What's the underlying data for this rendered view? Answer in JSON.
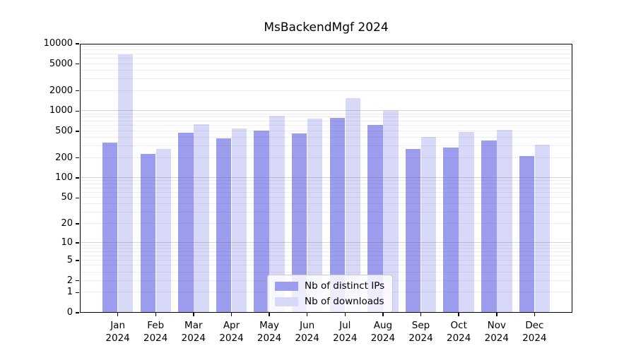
{
  "title": "MsBackendMgf 2024",
  "chart_data": {
    "type": "bar",
    "title": "MsBackendMgf 2024",
    "categories": [
      "Jan",
      "Feb",
      "Mar",
      "Apr",
      "May",
      "Jun",
      "Jul",
      "Aug",
      "Sep",
      "Oct",
      "Nov",
      "Dec"
    ],
    "category_year_label": "2024",
    "series": [
      {
        "name": "Nb of distinct IPs",
        "color": "#9d9df0",
        "values": [
          335,
          230,
          475,
          395,
          510,
          465,
          785,
          625,
          275,
          285,
          360,
          215
        ]
      },
      {
        "name": "Nb of downloads",
        "color": "#d8d8f8",
        "values": [
          6900,
          270,
          630,
          545,
          845,
          770,
          1570,
          1000,
          415,
          485,
          520,
          312
        ]
      }
    ],
    "xlabel": "",
    "ylabel": "",
    "y_scale": "log1p",
    "ylim": [
      0,
      10000
    ],
    "y_ticks": [
      0,
      1,
      2,
      5,
      10,
      20,
      50,
      100,
      200,
      500,
      1000,
      2000,
      5000,
      10000
    ],
    "grid": true,
    "legend_position": "bottom-center"
  },
  "colors": {
    "background": "#ffffff",
    "axis": "#000000",
    "grid_minor": "#ebebeb",
    "grid_major": "#cfcfcf",
    "legend_border": "#cccccc"
  }
}
